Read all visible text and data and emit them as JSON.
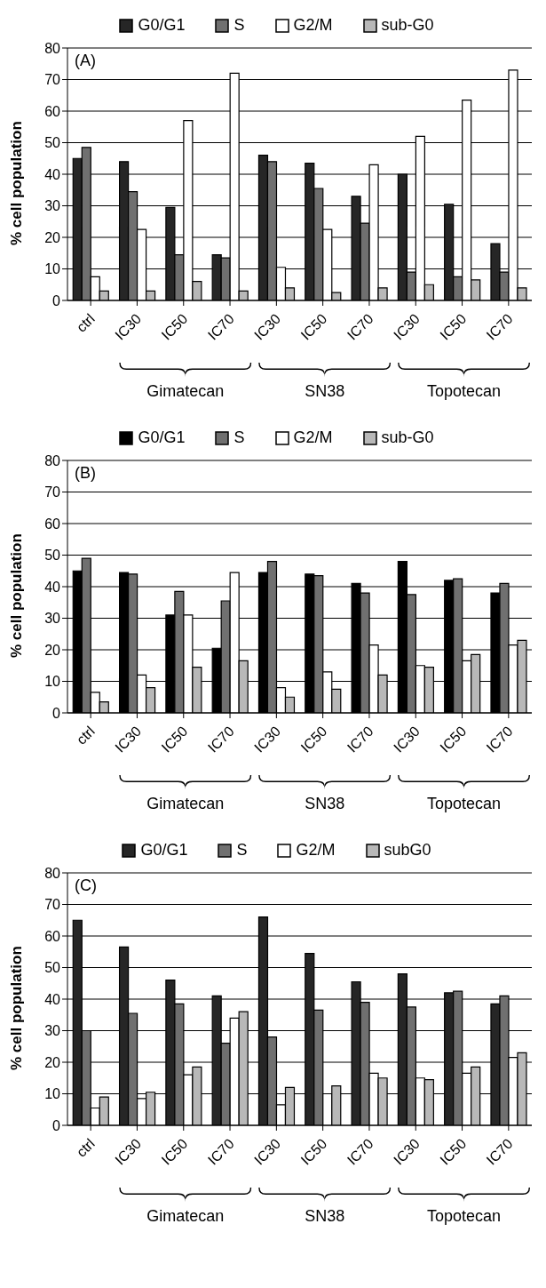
{
  "chart_data": [
    {
      "type": "bar",
      "title": "(A)",
      "ylabel": "% cell population",
      "categories": [
        "ctrl",
        "IC30",
        "IC50",
        "IC70",
        "IC30",
        "IC50",
        "IC70",
        "IC30",
        "IC50",
        "IC70"
      ],
      "series": [
        {
          "name": "G0/G1",
          "color": "#262626",
          "values": [
            45,
            44,
            29.5,
            14.5,
            46,
            43.5,
            33,
            40,
            30.5,
            18
          ]
        },
        {
          "name": "S",
          "color": "#707070",
          "values": [
            48.5,
            34.5,
            14.5,
            13.5,
            44,
            35.5,
            24.5,
            9,
            7.5,
            9
          ]
        },
        {
          "name": "G2/M",
          "color": "#ffffff",
          "values": [
            7.5,
            22.5,
            57,
            72,
            10.5,
            22.5,
            43,
            52,
            63.5,
            73
          ]
        },
        {
          "name": "sub-G0",
          "color": "#b8b8b8",
          "values": [
            3,
            3,
            6,
            3,
            4,
            2.5,
            4,
            5,
            6.5,
            4
          ]
        }
      ],
      "ylim": [
        0,
        80
      ],
      "yticks": [
        0,
        10,
        20,
        30,
        40,
        50,
        60,
        70,
        80
      ],
      "grid": "y",
      "legend": "top",
      "annotations": [
        "Gimatecan",
        "SN38",
        "Topotecan"
      ]
    },
    {
      "type": "bar",
      "title": "(B)",
      "ylabel": "% cell population",
      "categories": [
        "ctrl",
        "IC30",
        "IC50",
        "IC70",
        "IC30",
        "IC50",
        "IC70",
        "IC30",
        "IC50",
        "IC70"
      ],
      "series": [
        {
          "name": "G0/G1",
          "color": "#000000",
          "values": [
            45,
            44.5,
            31,
            20.5,
            44.5,
            44,
            41,
            48,
            42,
            38
          ]
        },
        {
          "name": "S",
          "color": "#707070",
          "values": [
            49,
            44,
            38.5,
            35.5,
            48,
            43.5,
            38,
            37.5,
            42.5,
            41
          ]
        },
        {
          "name": "G2/M",
          "color": "#ffffff",
          "values": [
            6.5,
            12,
            31,
            44.5,
            8,
            13,
            21.5,
            15,
            16.5,
            21.5
          ]
        },
        {
          "name": "sub-G0",
          "color": "#b8b8b8",
          "values": [
            3.5,
            8,
            14.5,
            16.5,
            5,
            7.5,
            12,
            14.5,
            18.5,
            23
          ]
        }
      ],
      "ylim": [
        0,
        80
      ],
      "yticks": [
        0,
        10,
        20,
        30,
        40,
        50,
        60,
        70,
        80
      ],
      "grid": "y",
      "legend": "top",
      "annotations": [
        "Gimatecan",
        "SN38",
        "Topotecan"
      ]
    },
    {
      "type": "bar",
      "title": "(C)",
      "ylabel": "% cell population",
      "categories": [
        "ctrl",
        "IC30",
        "IC50",
        "IC70",
        "IC30",
        "IC50",
        "IC70",
        "IC30",
        "IC50",
        "IC70"
      ],
      "series": [
        {
          "name": "G0/G1",
          "color": "#262626",
          "values": [
            65,
            56.5,
            46,
            41,
            66,
            54.5,
            45.5,
            48,
            42,
            38.5
          ]
        },
        {
          "name": "S",
          "color": "#707070",
          "values": [
            30,
            35.5,
            38.5,
            26,
            28,
            36.5,
            39,
            37.5,
            42.5,
            41
          ]
        },
        {
          "name": "G2/M",
          "color": "#ffffff",
          "values": [
            5.5,
            8.5,
            16,
            34,
            6.5,
            10,
            16.5,
            15,
            16.5,
            21.5
          ]
        },
        {
          "name": "subG0",
          "color": "#b8b8b8",
          "values": [
            9,
            10.5,
            18.5,
            36,
            12,
            12.5,
            15,
            14.5,
            18.5,
            23
          ]
        }
      ],
      "ylim": [
        0,
        80
      ],
      "yticks": [
        0,
        10,
        20,
        30,
        40,
        50,
        60,
        70,
        80
      ],
      "grid": "y",
      "legend": "top",
      "annotations": [
        "Gimatecan",
        "SN38",
        "Topotecan"
      ]
    }
  ]
}
